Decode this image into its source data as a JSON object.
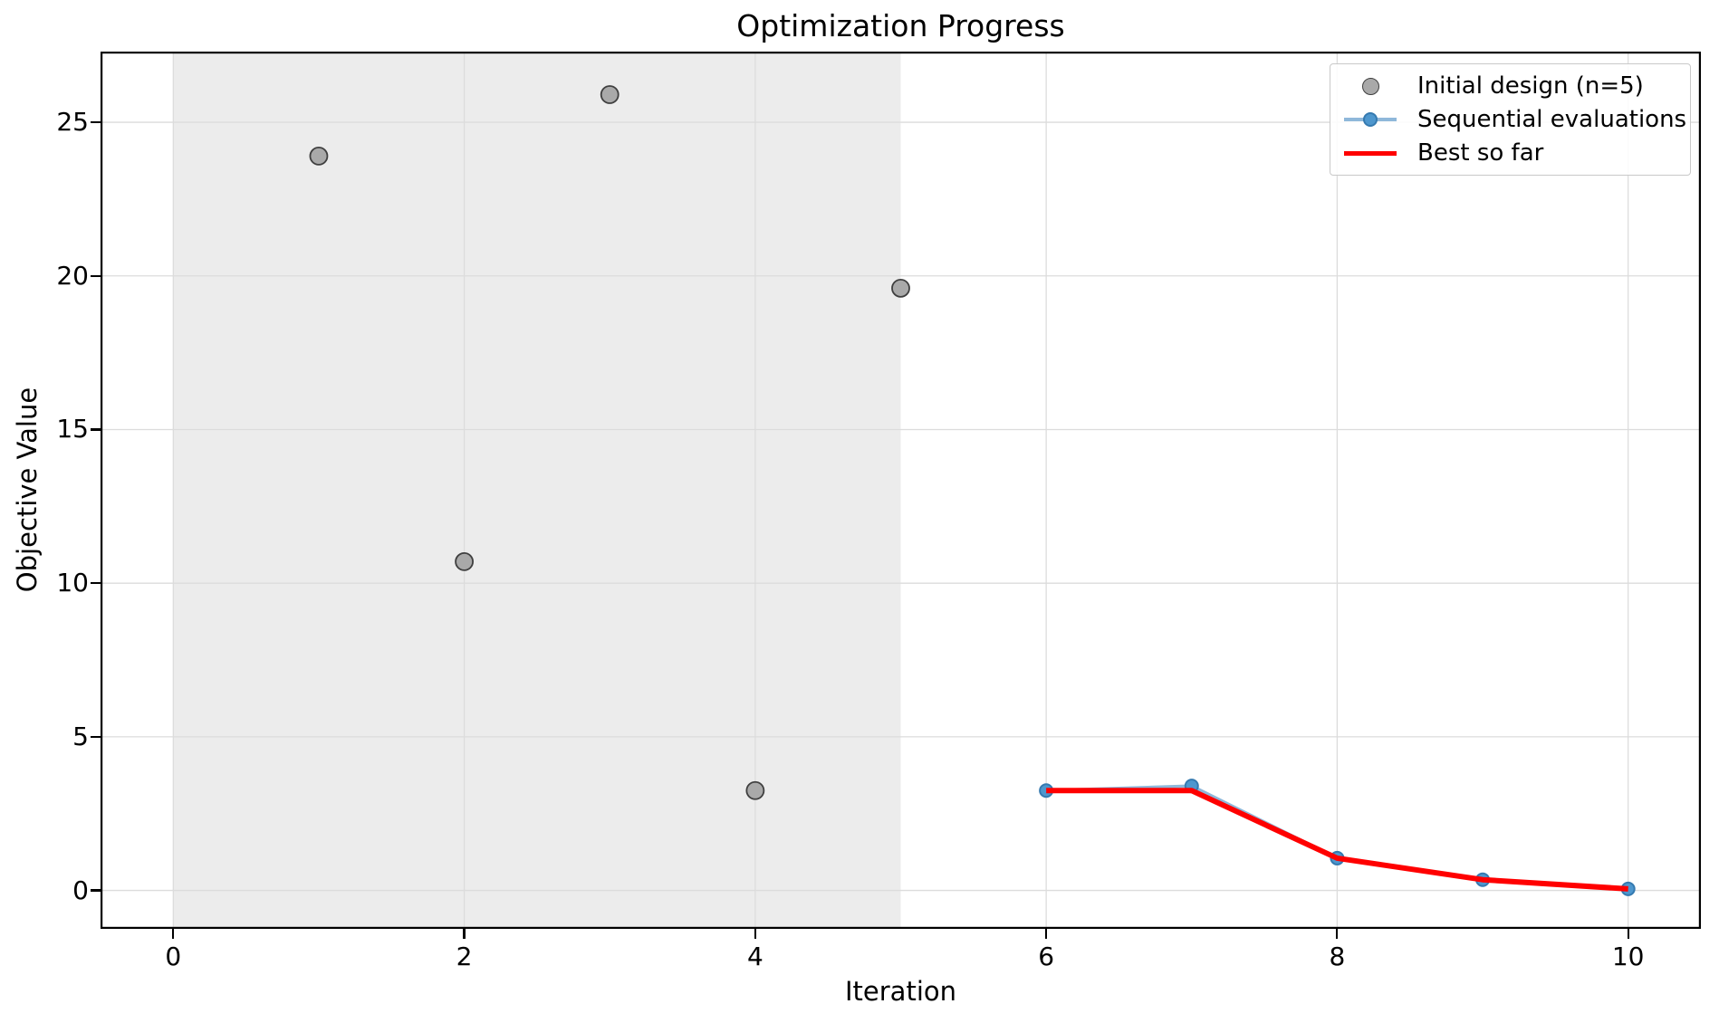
{
  "figure": {
    "kind": "matplotlib-style plot"
  },
  "chart_data": {
    "type": "scatter",
    "title": "Optimization Progress",
    "xlabel": "Iteration",
    "ylabel": "Objective Value",
    "xlim": [
      -0.5,
      10.5
    ],
    "ylim": [
      -1.25,
      27.3
    ],
    "x_ticks": [
      0,
      2,
      4,
      6,
      8,
      10
    ],
    "y_ticks": [
      0,
      5,
      10,
      15,
      20,
      25
    ],
    "grid": true,
    "grid_color": "#dcdcdc",
    "background_color": "#ffffff",
    "spine_color": "#000000",
    "shaded_region": {
      "x_start": 0,
      "x_end": 5,
      "color": "#ececec"
    },
    "series": [
      {
        "name": "Initial design (n=5)",
        "type": "scatter",
        "x": [
          1,
          2,
          3,
          4,
          5
        ],
        "y": [
          23.9,
          10.7,
          25.9,
          3.25,
          19.6
        ],
        "marker_color": "#a9a9a9",
        "marker_edge_color": "#3f3f3f",
        "marker_diameter": 19
      },
      {
        "name": "Sequential evaluations",
        "type": "line_marker",
        "x": [
          6,
          7,
          8,
          9,
          10
        ],
        "y": [
          3.25,
          3.4,
          1.05,
          0.35,
          0.05
        ],
        "line_color": "#8fb8da",
        "line_width": 3.5,
        "marker_color": "#4e97ce",
        "marker_edge_color": "#357ab0",
        "marker_diameter": 14
      },
      {
        "name": "Best so far",
        "type": "line",
        "x": [
          6,
          7,
          8,
          9,
          10
        ],
        "y": [
          3.25,
          3.25,
          1.05,
          0.35,
          0.05
        ],
        "line_color": "#ff0000",
        "line_width": 6
      }
    ],
    "legend": {
      "position": "upper right"
    }
  }
}
